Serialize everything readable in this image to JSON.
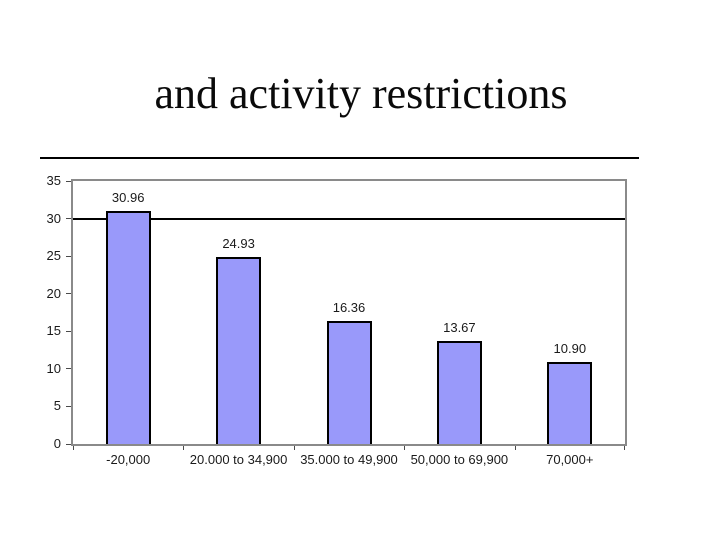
{
  "slide": {
    "title": "and activity restrictions"
  },
  "chart_data": {
    "type": "bar",
    "title": "and activity restrictions",
    "categories": [
      "-20,000",
      "20.000 to 34,900",
      "35.000 to 49,900",
      "50,000 to 69,900",
      "70,000+"
    ],
    "values": [
      30.96,
      24.93,
      16.36,
      13.67,
      10.9
    ],
    "value_labels": [
      "30.96",
      "24.93",
      "16.36",
      "13.67",
      "10.90"
    ],
    "xlabel": "",
    "ylabel": "",
    "ylim": [
      0,
      35
    ],
    "ytick_interval": 5,
    "ytick_labels": [
      "0",
      "5",
      "10",
      "15",
      "20",
      "25",
      "30",
      "35"
    ],
    "gridlines_at": [
      30
    ],
    "legend": "none",
    "grid": "single-line-at-30",
    "colors": {
      "bar_fill": "#9999fa",
      "bar_border": "#000000",
      "plot_border": "#8a8a8a",
      "gridline": "#000000",
      "text": "#1a1a1a",
      "title_text": "#0a0a0a",
      "background": "#ffffff"
    }
  }
}
